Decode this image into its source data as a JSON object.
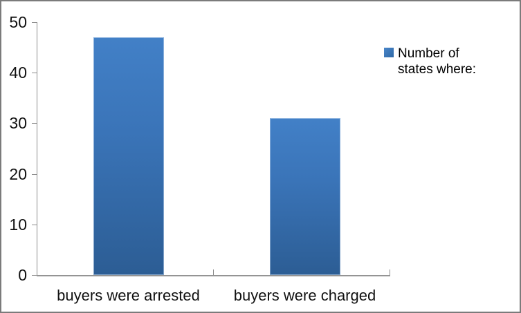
{
  "chart_data": {
    "type": "bar",
    "title": "",
    "xlabel": "",
    "ylabel": "",
    "categories": [
      "buyers were arrested",
      "buyers were charged"
    ],
    "series": [
      {
        "name": "Number of states where:",
        "values": [
          47,
          31
        ]
      }
    ],
    "values": [
      47,
      31
    ],
    "ylim": [
      0,
      50
    ],
    "yticks": [
      0,
      10,
      20,
      30,
      40,
      50
    ],
    "ytick_labels": [
      "0",
      "10",
      "20",
      "30",
      "40",
      "50"
    ],
    "grid": false,
    "legend": {
      "position": "right",
      "label": "Number of states where:"
    },
    "colors": {
      "bar_top": "#4280c7",
      "bar_bottom": "#2c5d94",
      "legend_swatch": "#3a74b8",
      "axis": "#8a8a8a",
      "text": "#111111",
      "frame_border": "#7b7b7b",
      "background": "#ffffff"
    }
  }
}
